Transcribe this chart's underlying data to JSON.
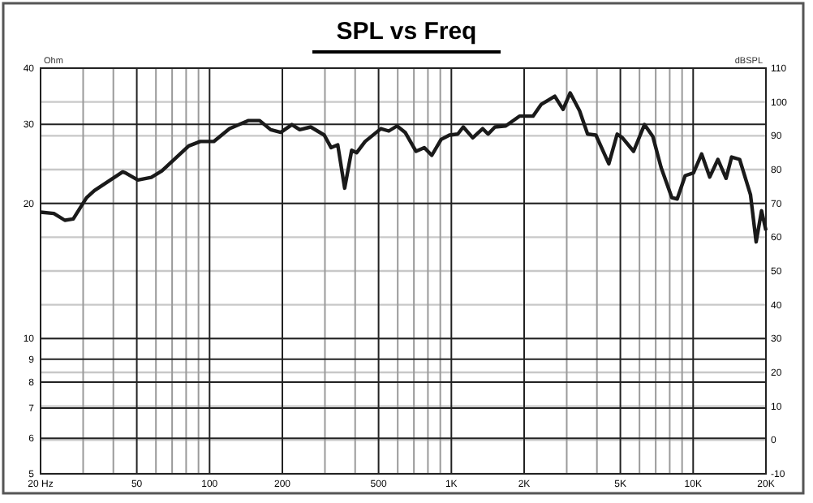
{
  "chart_data": {
    "type": "line",
    "title": "SPL vs Freq",
    "ylabel": "Ohm",
    "y2label": "dBSPL",
    "log": "xy",
    "grid": true,
    "line_style": "solid",
    "marker": "none",
    "xlim": [
      20,
      20000
    ],
    "xticks": [
      {
        "value": 20,
        "label": "20 Hz"
      },
      {
        "value": 30,
        "label": null
      },
      {
        "value": 40,
        "label": null
      },
      50,
      {
        "value": 60,
        "label": null
      },
      {
        "value": 70,
        "label": null
      },
      {
        "value": 80,
        "label": null
      },
      {
        "value": 90,
        "label": null
      },
      100,
      200,
      {
        "value": 300,
        "label": null
      },
      {
        "value": 400,
        "label": null
      },
      500,
      {
        "value": 600,
        "label": null
      },
      {
        "value": 700,
        "label": null
      },
      {
        "value": 800,
        "label": null
      },
      {
        "value": 900,
        "label": null
      },
      {
        "value": 1000,
        "label": "1K"
      },
      {
        "value": 2000,
        "label": "2K"
      },
      {
        "value": 3000,
        "label": null
      },
      {
        "value": 4000,
        "label": null
      },
      {
        "value": 5000,
        "label": "5K"
      },
      {
        "value": 6000,
        "label": null
      },
      {
        "value": 7000,
        "label": null
      },
      {
        "value": 8000,
        "label": null
      },
      {
        "value": 9000,
        "label": null
      },
      {
        "value": 10000,
        "label": "10K"
      },
      {
        "value": 20000,
        "label": "20K"
      }
    ],
    "ylim": [
      5,
      40
    ],
    "yticks": [
      5,
      6,
      7,
      8,
      9,
      10,
      20,
      30,
      40
    ],
    "y2lim": [
      -10,
      110
    ],
    "y2ticks": [
      -10,
      0,
      10,
      20,
      30,
      40,
      50,
      60,
      70,
      80,
      90,
      100,
      110
    ],
    "series": [
      {
        "color": "#1a1a1a",
        "axis": "y2",
        "x": [
          20,
          22.7,
          25.2,
          27.3,
          31,
          33.4,
          43.7,
          44.9,
          50.5,
          57.4,
          63.5,
          82,
          91.5,
          104,
          121,
          145,
          161,
          179,
          197,
          219,
          236,
          262,
          298,
          318,
          339,
          362,
          387,
          406,
          440,
          511,
          551,
          596,
          644,
          714,
          773,
          830,
          907,
          982,
          1063,
          1120,
          1226,
          1347,
          1419,
          1515,
          1678,
          1912,
          2176,
          2355,
          2678,
          2897,
          3100,
          3390,
          3660,
          3960,
          4480,
          4850,
          5100,
          5670,
          6290,
          6810,
          7370,
          8160,
          8590,
          9270,
          10030,
          10840,
          11710,
          12660,
          13680,
          14420,
          15570,
          17260,
          18220,
          19180,
          20000
        ],
        "values": [
          67.4,
          67,
          65,
          65.4,
          71.7,
          73.8,
          79.3,
          79,
          76.9,
          77.7,
          79.6,
          87,
          88.3,
          88.3,
          92.1,
          94.5,
          94.5,
          91.8,
          91,
          93.3,
          91.8,
          92.6,
          90.2,
          86.5,
          87.3,
          74.5,
          85.7,
          85,
          88.3,
          92.1,
          91.4,
          92.9,
          91,
          85.4,
          86.5,
          84.2,
          88.9,
          90.2,
          90.5,
          92.6,
          89.4,
          92.1,
          90.5,
          92.6,
          92.9,
          95.8,
          95.8,
          99.3,
          101.7,
          97.8,
          102.7,
          97.4,
          90.5,
          90.2,
          81.7,
          90.5,
          89.4,
          85.4,
          93.3,
          89.8,
          80.6,
          71.7,
          71.3,
          78.2,
          79,
          84.6,
          77.8,
          83,
          77.4,
          83.7,
          83,
          72.6,
          58.6,
          67.8,
          62
        ]
      }
    ]
  }
}
